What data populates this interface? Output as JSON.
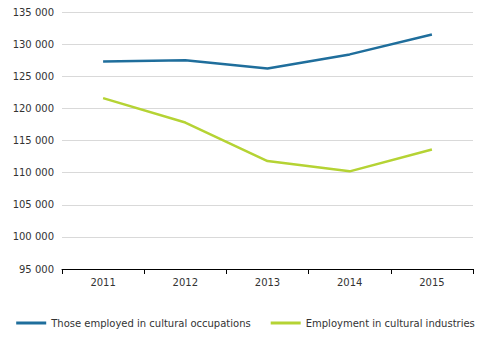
{
  "chart_data": {
    "type": "line",
    "categories": [
      "2011",
      "2012",
      "2013",
      "2014",
      "2015"
    ],
    "series": [
      {
        "name": "Those employed in cultural occupations",
        "color": "#1f6e9c",
        "values": [
          127300,
          127500,
          126200,
          128400,
          131500
        ]
      },
      {
        "name": "Employment in cultural industries",
        "color": "#b5d334",
        "values": [
          121600,
          117800,
          111800,
          110200,
          113600
        ]
      }
    ],
    "ylim": [
      95000,
      135000
    ],
    "yticks": [
      {
        "value": 95000,
        "label": "95 000"
      },
      {
        "value": 100000,
        "label": "100 000"
      },
      {
        "value": 105000,
        "label": "105 000"
      },
      {
        "value": 110000,
        "label": "110 000"
      },
      {
        "value": 115000,
        "label": "115 000"
      },
      {
        "value": 120000,
        "label": "120 000"
      },
      {
        "value": 125000,
        "label": "125 000"
      },
      {
        "value": 130000,
        "label": "130 000"
      },
      {
        "value": 135000,
        "label": "135 000"
      }
    ],
    "grid": true,
    "legend": "bottom"
  }
}
